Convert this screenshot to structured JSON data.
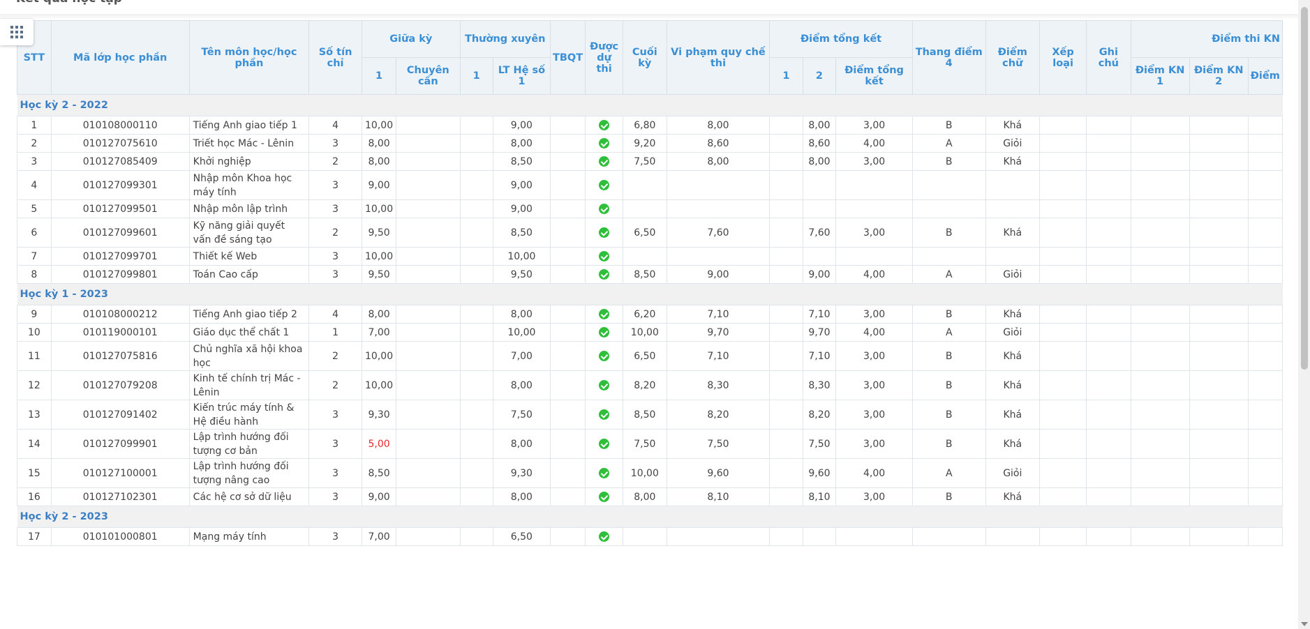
{
  "page": {
    "title": "Kết quả học tập"
  },
  "header": {
    "stt": "STT",
    "ma_lop": "Mã lớp học phần",
    "ten_mon": "Tên môn học/học phần",
    "so_tin_chi": "Số tín chỉ",
    "giua_ky": "Giữa kỳ",
    "giua_ky_1": "1",
    "chuyen_can": "Chuyên cần",
    "thuong_xuyen": "Thường xuyên",
    "tx_1": "1",
    "lt_he_so_1": "LT Hệ số 1",
    "tbqt": "TBQT",
    "duoc_du_thi": "Được dự thi",
    "cuoi_ky": "Cuối kỳ",
    "vi_pham": "Vi phạm quy chế thi",
    "diem_tong_ket": "Điểm tổng kết",
    "dtk_1": "1",
    "dtk_2": "2",
    "dtk": "Điểm tổng kết",
    "thang_diem_4": "Thang điểm 4",
    "diem_chu": "Điểm chữ",
    "xep_loai": "Xếp loại",
    "ghi_chu": "Ghi chú",
    "diem_thi_kn": "Điểm thi KN",
    "kn1": "Điểm KN 1",
    "kn2": "Điểm KN 2",
    "kn3": "Điểm"
  },
  "groups": [
    {
      "label": "Học kỳ 2 - 2022",
      "rows": [
        {
          "stt": "1",
          "ma": "010108000110",
          "ten": "Tiếng Anh giao tiếp 1",
          "tc": "4",
          "gk": "10,00",
          "tx": "9,00",
          "ck": "6,80",
          "vp": "8,00",
          "t2": "8,00",
          "t4": "3,00",
          "chu": "B",
          "xl": "Khá"
        },
        {
          "stt": "2",
          "ma": "010127075610",
          "ten": "Triết học Mác - Lênin",
          "tc": "3",
          "gk": "8,00",
          "tx": "8,00",
          "ck": "9,20",
          "vp": "8,60",
          "t2": "8,60",
          "t4": "4,00",
          "chu": "A",
          "xl": "Giỏi"
        },
        {
          "stt": "3",
          "ma": "010127085409",
          "ten": "Khởi nghiệp",
          "tc": "2",
          "gk": "8,00",
          "tx": "8,50",
          "ck": "7,50",
          "vp": "8,00",
          "t2": "8,00",
          "t4": "3,00",
          "chu": "B",
          "xl": "Khá"
        },
        {
          "stt": "4",
          "ma": "010127099301",
          "ten": "Nhập môn Khoa học máy tính",
          "tc": "3",
          "gk": "9,00",
          "tx": "9,00",
          "ck": "",
          "vp": "",
          "t2": "",
          "t4": "",
          "chu": "",
          "xl": "",
          "tall": true
        },
        {
          "stt": "5",
          "ma": "010127099501",
          "ten": "Nhập môn lập trình",
          "tc": "3",
          "gk": "10,00",
          "tx": "9,00",
          "ck": "",
          "vp": "",
          "t2": "",
          "t4": "",
          "chu": "",
          "xl": ""
        },
        {
          "stt": "6",
          "ma": "010127099601",
          "ten": "Kỹ năng giải quyết vấn đề sáng tạo",
          "tc": "2",
          "gk": "9,50",
          "tx": "8,50",
          "ck": "6,50",
          "vp": "7,60",
          "t2": "7,60",
          "t4": "3,00",
          "chu": "B",
          "xl": "Khá",
          "tall": true
        },
        {
          "stt": "7",
          "ma": "010127099701",
          "ten": "Thiết kế Web",
          "tc": "3",
          "gk": "10,00",
          "tx": "10,00",
          "ck": "",
          "vp": "",
          "t2": "",
          "t4": "",
          "chu": "",
          "xl": ""
        },
        {
          "stt": "8",
          "ma": "010127099801",
          "ten": "Toán Cao cấp",
          "tc": "3",
          "gk": "9,50",
          "tx": "9,50",
          "ck": "8,50",
          "vp": "9,00",
          "t2": "9,00",
          "t4": "4,00",
          "chu": "A",
          "xl": "Giỏi"
        }
      ]
    },
    {
      "label": "Học kỳ 1 - 2023",
      "rows": [
        {
          "stt": "9",
          "ma": "010108000212",
          "ten": "Tiếng Anh giao tiếp 2",
          "tc": "4",
          "gk": "8,00",
          "tx": "8,00",
          "ck": "6,20",
          "vp": "7,10",
          "t2": "7,10",
          "t4": "3,00",
          "chu": "B",
          "xl": "Khá"
        },
        {
          "stt": "10",
          "ma": "010119000101",
          "ten": "Giáo dục thể chất 1",
          "tc": "1",
          "gk": "7,00",
          "tx": "10,00",
          "ck": "10,00",
          "vp": "9,70",
          "t2": "9,70",
          "t4": "4,00",
          "chu": "A",
          "xl": "Giỏi"
        },
        {
          "stt": "11",
          "ma": "010127075816",
          "ten": "Chủ nghĩa xã hội khoa học",
          "tc": "2",
          "gk": "10,00",
          "tx": "7,00",
          "ck": "6,50",
          "vp": "7,10",
          "t2": "7,10",
          "t4": "3,00",
          "chu": "B",
          "xl": "Khá",
          "tall": true
        },
        {
          "stt": "12",
          "ma": "010127079208",
          "ten": "Kinh tế chính trị Mác - Lênin",
          "tc": "2",
          "gk": "10,00",
          "tx": "8,00",
          "ck": "8,20",
          "vp": "8,30",
          "t2": "8,30",
          "t4": "3,00",
          "chu": "B",
          "xl": "Khá",
          "tall": true
        },
        {
          "stt": "13",
          "ma": "010127091402",
          "ten": "Kiến trúc máy tính & Hệ điều hành",
          "tc": "3",
          "gk": "9,30",
          "tx": "7,50",
          "ck": "8,50",
          "vp": "8,20",
          "t2": "8,20",
          "t4": "3,00",
          "chu": "B",
          "xl": "Khá",
          "tall": true
        },
        {
          "stt": "14",
          "ma": "010127099901",
          "ten": "Lập trình hướng đối tượng cơ bản",
          "tc": "3",
          "gk": "5,00",
          "tx": "8,00",
          "ck": "7,50",
          "vp": "7,50",
          "t2": "7,50",
          "t4": "3,00",
          "chu": "B",
          "xl": "Khá",
          "tall": true,
          "gk_red": true
        },
        {
          "stt": "15",
          "ma": "010127100001",
          "ten": "Lập trình hướng đối tượng nâng cao",
          "tc": "3",
          "gk": "8,50",
          "tx": "9,30",
          "ck": "10,00",
          "vp": "9,60",
          "t2": "9,60",
          "t4": "4,00",
          "chu": "A",
          "xl": "Giỏi",
          "tall": true
        },
        {
          "stt": "16",
          "ma": "010127102301",
          "ten": "Các hệ cơ sở dữ liệu",
          "tc": "3",
          "gk": "9,00",
          "tx": "8,00",
          "ck": "8,00",
          "vp": "8,10",
          "t2": "8,10",
          "t4": "3,00",
          "chu": "B",
          "xl": "Khá"
        }
      ]
    },
    {
      "label": "Học kỳ 2 - 2023",
      "rows": [
        {
          "stt": "17",
          "ma": "010101000801",
          "ten": "Mạng máy tính",
          "tc": "3",
          "gk": "7,00",
          "tx": "6,50",
          "ck": "",
          "vp": "",
          "t2": "",
          "t4": "",
          "chu": "",
          "xl": ""
        }
      ]
    }
  ],
  "colors": {
    "header_text": "#3b8fd4",
    "group_text": "#3b7fc4",
    "check": "#2fbf3b",
    "warn": "#e8262b"
  },
  "icons": {
    "apps": "grid-icon",
    "eligible": "check-circle-icon"
  }
}
